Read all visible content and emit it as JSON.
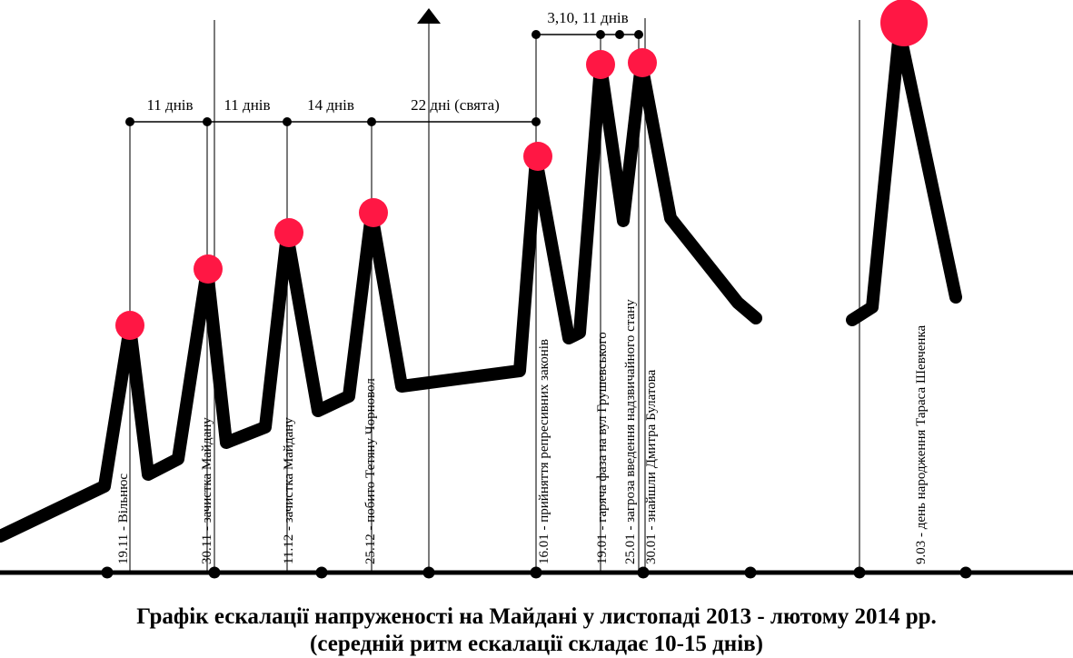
{
  "colors": {
    "line": "#000000",
    "peak": "#ff1744",
    "guide": "#333333"
  },
  "intervals": [
    {
      "label": "11 днів"
    },
    {
      "label": "11 днів"
    },
    {
      "label": "14 днів"
    },
    {
      "label": "22 дні (свята)"
    },
    {
      "label": "3,10, 11 днів"
    }
  ],
  "events": [
    {
      "label": "19.11 - Вільнюс"
    },
    {
      "label": "30.11 - зачистка Майдану"
    },
    {
      "label": "11.12 - зачистка Майдану"
    },
    {
      "label": "25.12 - побито Тетяну Чорновол"
    },
    {
      "label": "16.01 - прийняття репресивних законів"
    },
    {
      "label": "19.01 - гаряча фаза на вул Грушевського"
    },
    {
      "label": "25.01 - загроза введення надзвичайного стану"
    },
    {
      "label": "30.01 - знайшли Дмитра Булатова"
    },
    {
      "label": "9.03 - день народження Тараса Шевченка"
    }
  ],
  "caption": {
    "line1": "Графік ескалації напруженості на Майдані у листопаді 2013 - лютому 2014 рр.",
    "line2": "(середній ритм ескалації складає 10-15 днів)"
  }
}
